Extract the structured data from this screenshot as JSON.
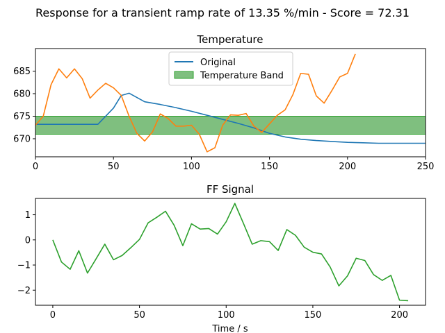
{
  "figure": {
    "suptitle": "Response for a transient ramp rate of 13.35 %/min - Score = 72.31"
  },
  "chart_data": [
    {
      "type": "line",
      "title": "Temperature",
      "xlabel": "",
      "ylabel": "",
      "xlim": [
        0,
        250
      ],
      "ylim": [
        666,
        690
      ],
      "xticks": [
        0,
        50,
        100,
        150,
        200,
        250
      ],
      "yticks": [
        670,
        675,
        680,
        685
      ],
      "grid": false,
      "legend_position": "top-center",
      "band": {
        "name": "Temperature Band",
        "y_low": 671,
        "y_high": 675,
        "color": "#7fbf7f",
        "edge": "#2ca02c"
      },
      "series": [
        {
          "name": "Original",
          "color": "#1f77b4",
          "x": [
            0,
            10,
            20,
            30,
            40,
            50,
            55,
            60,
            70,
            80,
            90,
            100,
            110,
            120,
            130,
            140,
            150,
            160,
            170,
            180,
            190,
            200,
            210,
            220,
            230,
            240,
            250
          ],
          "y": [
            673.2,
            673.2,
            673.2,
            673.2,
            673.2,
            676.8,
            679.6,
            680.1,
            678.2,
            677.6,
            676.9,
            676.1,
            675.2,
            674.3,
            673.4,
            672.4,
            671.2,
            670.4,
            669.9,
            669.6,
            669.4,
            669.2,
            669.1,
            669.0,
            669.0,
            669.0,
            669.0
          ]
        },
        {
          "name": "",
          "color": "#ff7f0e",
          "x": [
            0,
            5,
            10,
            15,
            20,
            25,
            30,
            35,
            40,
            45,
            50,
            55,
            60,
            65,
            70,
            75,
            80,
            85,
            90,
            95,
            100,
            105,
            110,
            115,
            120,
            125,
            130,
            135,
            140,
            145,
            150,
            155,
            160,
            165,
            170,
            175,
            180,
            185,
            190,
            195,
            200,
            205
          ],
          "y": [
            673,
            675,
            682,
            685.5,
            683.5,
            685.5,
            683.3,
            679,
            680.8,
            682.3,
            681.3,
            679.6,
            675,
            671.2,
            669.5,
            671.5,
            675.5,
            674.5,
            672.8,
            672.8,
            673,
            671,
            667.1,
            668,
            673,
            675.3,
            675.2,
            675.6,
            672.8,
            671.4,
            673.3,
            675.2,
            676.4,
            679.8,
            684.5,
            684.3,
            679.5,
            677.9,
            680.7,
            683.7,
            684.5,
            688.8
          ]
        }
      ]
    },
    {
      "type": "line",
      "title": "FF Signal",
      "xlabel": "Time / s",
      "ylabel": "",
      "xlim": [
        -10,
        215
      ],
      "ylim": [
        -2.6,
        1.65
      ],
      "xticks": [
        0,
        50,
        100,
        150,
        200
      ],
      "yticks": [
        -2,
        -1,
        0,
        1
      ],
      "grid": false,
      "series": [
        {
          "name": "",
          "color": "#2ca02c",
          "x": [
            0,
            5,
            10,
            15,
            20,
            25,
            30,
            35,
            40,
            45,
            50,
            55,
            60,
            65,
            70,
            75,
            80,
            85,
            90,
            95,
            100,
            105,
            110,
            115,
            120,
            125,
            130,
            135,
            140,
            145,
            150,
            155,
            160,
            165,
            170,
            175,
            180,
            185,
            190,
            195,
            200,
            205
          ],
          "y": [
            0,
            -0.88,
            -1.17,
            -0.43,
            -1.32,
            -0.75,
            -0.17,
            -0.79,
            -0.62,
            -0.31,
            0.02,
            0.68,
            0.9,
            1.14,
            0.58,
            -0.23,
            0.64,
            0.43,
            0.45,
            0.23,
            0.72,
            1.45,
            0.65,
            -0.17,
            -0.03,
            -0.07,
            -0.42,
            0.41,
            0.18,
            -0.29,
            -0.49,
            -0.56,
            -1.08,
            -1.83,
            -1.43,
            -0.73,
            -0.82,
            -1.38,
            -1.61,
            -1.41,
            -2.4,
            -2.42
          ]
        }
      ]
    }
  ]
}
